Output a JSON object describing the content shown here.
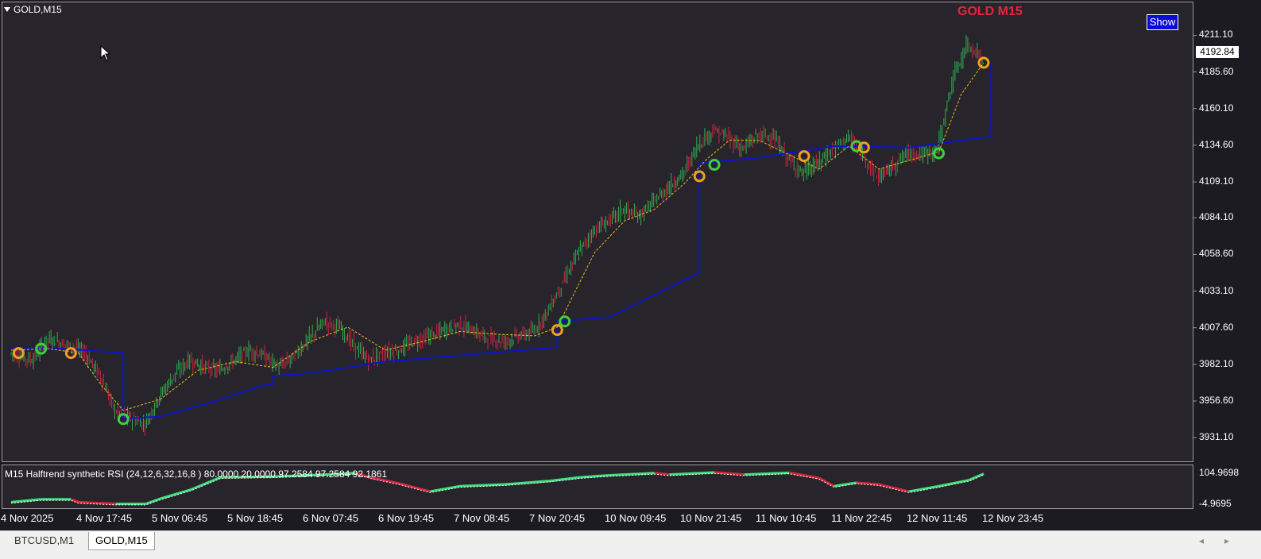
{
  "window": {
    "symbol_title": "GOLD,M15"
  },
  "watermark": "GOLD M15",
  "show_button": "Show",
  "indicator": {
    "label": "M15 Halftrend synthetic RSI  (24,12,6,32,16,8 ) 80.0000 20.0000 97.2584 97.2584 92.1861",
    "scale_top": "104.9698",
    "scale_bottom": "-4.9695"
  },
  "current_price": "4192.84",
  "tabs": [
    {
      "label": "BTCUSD,M1",
      "active": false
    },
    {
      "label": "GOLD,M15",
      "active": true
    }
  ],
  "colors": {
    "background": "#1d1b22",
    "pane": "#28242c",
    "bull": "#2fae4e",
    "bear": "#c8243c",
    "halftrend": "#0b16c8",
    "ma": "#e8c21a",
    "rsi_up": "#3fe07a",
    "rsi_down": "#d8243c",
    "signal_buy": "#3ecf3e",
    "signal_sell": "#f0a020"
  },
  "chart_data": {
    "type": "line",
    "title": "GOLD M15",
    "y_ticks": [
      "4211.10",
      "4185.60",
      "4160.10",
      "4134.60",
      "4109.10",
      "4084.10",
      "4058.60",
      "4033.10",
      "4007.60",
      "3982.10",
      "3956.60",
      "3931.10"
    ],
    "x_ticks": [
      "4 Nov 2025",
      "4 Nov 17:45",
      "5 Nov 06:45",
      "5 Nov 18:45",
      "6 Nov 07:45",
      "6 Nov 19:45",
      "7 Nov 08:45",
      "7 Nov 20:45",
      "10 Nov 09:45",
      "10 Nov 21:45",
      "11 Nov 10:45",
      "11 Nov 22:45",
      "12 Nov 11:45",
      "12 Nov 23:45"
    ],
    "ylim": [
      3924,
      4218
    ],
    "x_count": 130,
    "price_series": {
      "name": "price",
      "points": [
        [
          0,
          3990
        ],
        [
          3,
          3985
        ],
        [
          5,
          4000
        ],
        [
          8,
          3995
        ],
        [
          10,
          3990
        ],
        [
          12,
          3975
        ],
        [
          14,
          3950
        ],
        [
          16,
          3945
        ],
        [
          18,
          3940
        ],
        [
          20,
          3960
        ],
        [
          22,
          3975
        ],
        [
          24,
          3985
        ],
        [
          26,
          3980
        ],
        [
          28,
          3978
        ],
        [
          30,
          3985
        ],
        [
          32,
          3992
        ],
        [
          34,
          3988
        ],
        [
          36,
          3980
        ],
        [
          38,
          3988
        ],
        [
          40,
          4000
        ],
        [
          42,
          4012
        ],
        [
          44,
          4008
        ],
        [
          46,
          3995
        ],
        [
          48,
          3985
        ],
        [
          50,
          3990
        ],
        [
          52,
          3992
        ],
        [
          54,
          3998
        ],
        [
          56,
          4002
        ],
        [
          58,
          4006
        ],
        [
          60,
          4010
        ],
        [
          62,
          4005
        ],
        [
          64,
          4000
        ],
        [
          66,
          3998
        ],
        [
          68,
          4002
        ],
        [
          70,
          4005
        ],
        [
          72,
          4020
        ],
        [
          74,
          4040
        ],
        [
          76,
          4060
        ],
        [
          78,
          4075
        ],
        [
          80,
          4082
        ],
        [
          82,
          4090
        ],
        [
          84,
          4085
        ],
        [
          86,
          4095
        ],
        [
          88,
          4105
        ],
        [
          90,
          4115
        ],
        [
          92,
          4135
        ],
        [
          94,
          4145
        ],
        [
          96,
          4140
        ],
        [
          98,
          4132
        ],
        [
          100,
          4142
        ],
        [
          102,
          4140
        ],
        [
          104,
          4125
        ],
        [
          106,
          4115
        ],
        [
          108,
          4122
        ],
        [
          110,
          4132
        ],
        [
          112,
          4140
        ],
        [
          114,
          4128
        ],
        [
          116,
          4112
        ],
        [
          118,
          4120
        ],
        [
          120,
          4130
        ],
        [
          122,
          4128
        ],
        [
          124,
          4132
        ],
        [
          126,
          4180
        ],
        [
          128,
          4205
        ],
        [
          130,
          4195
        ]
      ]
    },
    "halftrend_series": {
      "name": "halftrend",
      "points": [
        [
          0,
          3993
        ],
        [
          7,
          3993
        ],
        [
          15,
          3990
        ],
        [
          15,
          3944
        ],
        [
          20,
          3946
        ],
        [
          27,
          3956
        ],
        [
          34,
          3968
        ],
        [
          35,
          3968
        ],
        [
          35,
          3974
        ],
        [
          40,
          3976
        ],
        [
          50,
          3984
        ],
        [
          73,
          3994
        ],
        [
          73,
          4012
        ],
        [
          80,
          4015
        ],
        [
          92,
          4046
        ],
        [
          92,
          4122
        ],
        [
          100,
          4126
        ],
        [
          110,
          4134
        ],
        [
          120,
          4133
        ],
        [
          130,
          4140
        ],
        [
          131,
          4140
        ],
        [
          131,
          4192
        ]
      ]
    },
    "ma_series": {
      "name": "ma",
      "points": [
        [
          0,
          3992
        ],
        [
          5,
          3993
        ],
        [
          9,
          3990
        ],
        [
          12,
          3968
        ],
        [
          15,
          3950
        ],
        [
          20,
          3958
        ],
        [
          25,
          3978
        ],
        [
          30,
          3984
        ],
        [
          35,
          3980
        ],
        [
          40,
          3998
        ],
        [
          45,
          4008
        ],
        [
          50,
          3992
        ],
        [
          55,
          3998
        ],
        [
          60,
          4005
        ],
        [
          65,
          4003
        ],
        [
          70,
          4002
        ],
        [
          73,
          4008
        ],
        [
          78,
          4060
        ],
        [
          82,
          4082
        ],
        [
          86,
          4090
        ],
        [
          90,
          4108
        ],
        [
          93,
          4125
        ],
        [
          96,
          4138
        ],
        [
          100,
          4138
        ],
        [
          104,
          4128
        ],
        [
          108,
          4118
        ],
        [
          112,
          4134
        ],
        [
          116,
          4118
        ],
        [
          120,
          4124
        ],
        [
          124,
          4130
        ],
        [
          127,
          4170
        ],
        [
          130,
          4192
        ]
      ]
    },
    "signals": [
      {
        "x": 1,
        "y": 3990,
        "type": "sell"
      },
      {
        "x": 4,
        "y": 3993,
        "type": "buy"
      },
      {
        "x": 8,
        "y": 3990,
        "type": "sell"
      },
      {
        "x": 15,
        "y": 3944,
        "type": "buy"
      },
      {
        "x": 73,
        "y": 4006,
        "type": "sell"
      },
      {
        "x": 74,
        "y": 4012,
        "type": "buy"
      },
      {
        "x": 92,
        "y": 4113,
        "type": "sell"
      },
      {
        "x": 94,
        "y": 4121,
        "type": "buy"
      },
      {
        "x": 106,
        "y": 4127,
        "type": "sell"
      },
      {
        "x": 113,
        "y": 4134,
        "type": "buy"
      },
      {
        "x": 114,
        "y": 4133,
        "type": "sell"
      },
      {
        "x": 124,
        "y": 4129,
        "type": "buy"
      },
      {
        "x": 130,
        "y": 4192,
        "type": "sell"
      }
    ],
    "rsi_series": {
      "name": "halftrend synthetic rsi",
      "ylim": [
        -4.9695,
        104.9698
      ],
      "points": [
        [
          0,
          10
        ],
        [
          4,
          18
        ],
        [
          8,
          18
        ],
        [
          9,
          10
        ],
        [
          14,
          5
        ],
        [
          18,
          5
        ],
        [
          20,
          20
        ],
        [
          24,
          45
        ],
        [
          28,
          80
        ],
        [
          35,
          82
        ],
        [
          42,
          88
        ],
        [
          46,
          92
        ],
        [
          48,
          80
        ],
        [
          52,
          62
        ],
        [
          56,
          40
        ],
        [
          60,
          55
        ],
        [
          66,
          60
        ],
        [
          72,
          70
        ],
        [
          76,
          80
        ],
        [
          80,
          86
        ],
        [
          86,
          92
        ],
        [
          88,
          88
        ],
        [
          94,
          94
        ],
        [
          98,
          88
        ],
        [
          104,
          93
        ],
        [
          108,
          78
        ],
        [
          110,
          55
        ],
        [
          113,
          65
        ],
        [
          116,
          60
        ],
        [
          120,
          40
        ],
        [
          124,
          55
        ],
        [
          128,
          72
        ],
        [
          130,
          90
        ]
      ]
    }
  }
}
